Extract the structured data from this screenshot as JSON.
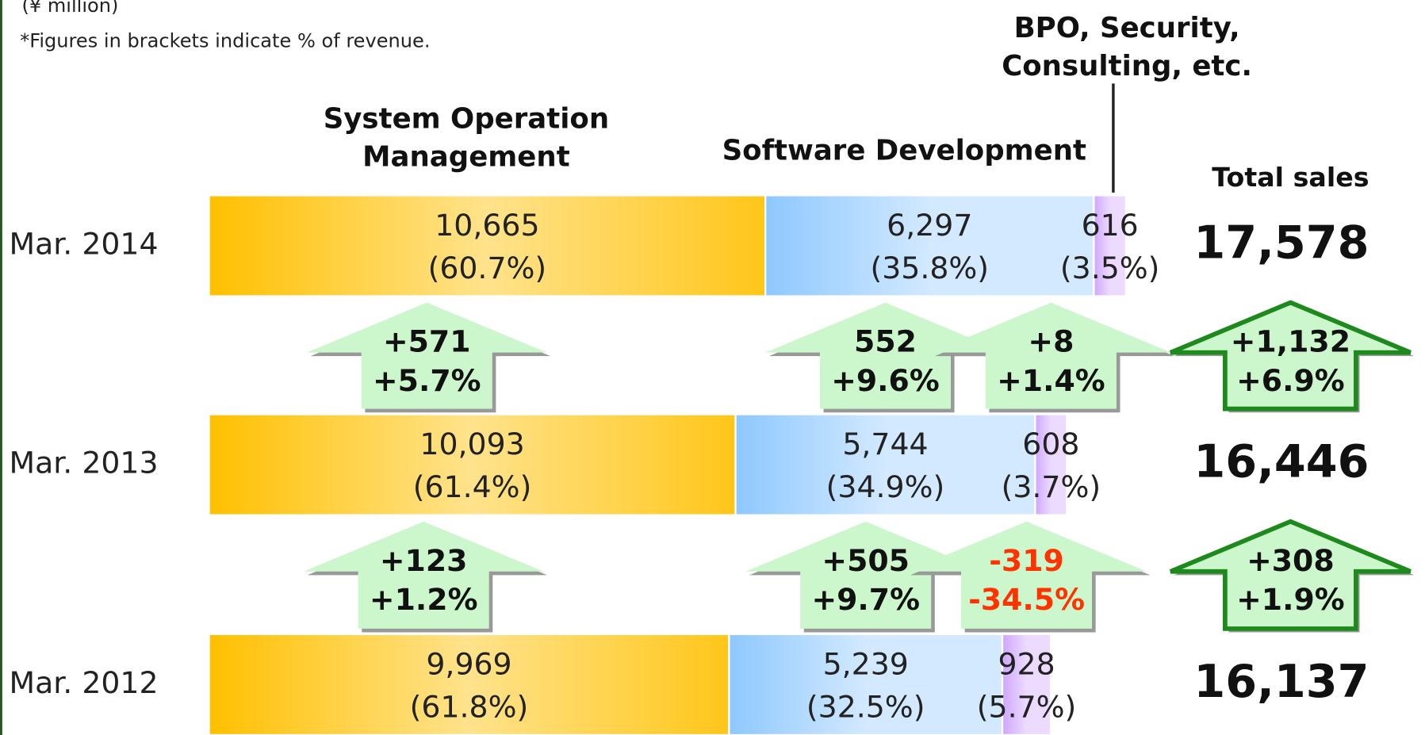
{
  "chart_data": {
    "type": "bar",
    "orientation": "horizontal",
    "stacked": true,
    "unit_note": "(¥ million)",
    "note": "*Figures in brackets indicate % of revenue.",
    "total_title": "Total sales",
    "categories": [
      "Mar. 2014",
      "Mar. 2013",
      "Mar. 2012"
    ],
    "series": [
      {
        "name": "System Operation Management",
        "color": "#ffc000",
        "values": [
          10665,
          10093,
          9969
        ],
        "value_labels": [
          "10,665",
          "10,093",
          "9,969"
        ],
        "share_labels": [
          "(60.7%)",
          "(61.4%)",
          "(61.8%)"
        ],
        "changes": [
          [
            "+571",
            "+5.7%"
          ],
          [
            "+123",
            "+1.2%"
          ]
        ]
      },
      {
        "name": "Software Development",
        "color": "#8ec8ff",
        "values": [
          6297,
          5744,
          5239
        ],
        "value_labels": [
          "6,297",
          "5,744",
          "5,239"
        ],
        "share_labels": [
          "(35.8%)",
          "(34.9%)",
          "(32.5%)"
        ],
        "changes": [
          [
            "552",
            "+9.6%"
          ],
          [
            "+505",
            "+9.7%"
          ]
        ]
      },
      {
        "name": "BPO, Security, Consulting, etc.",
        "color": "#cfa6ff",
        "values": [
          616,
          608,
          928
        ],
        "value_labels": [
          "616",
          "608",
          "928"
        ],
        "share_labels": [
          "(3.5%)",
          "(3.7%)",
          "(5.7%)"
        ],
        "changes": [
          [
            "+8",
            "+1.4%"
          ],
          [
            "-319",
            "-34.5%"
          ]
        ]
      }
    ],
    "totals": [
      17578,
      16446,
      16137
    ],
    "total_labels": [
      "17,578",
      "16,446",
      "16,137"
    ],
    "total_changes": [
      [
        "+1,132",
        "+6.9%"
      ],
      [
        "+308",
        "+1.9%"
      ]
    ]
  }
}
